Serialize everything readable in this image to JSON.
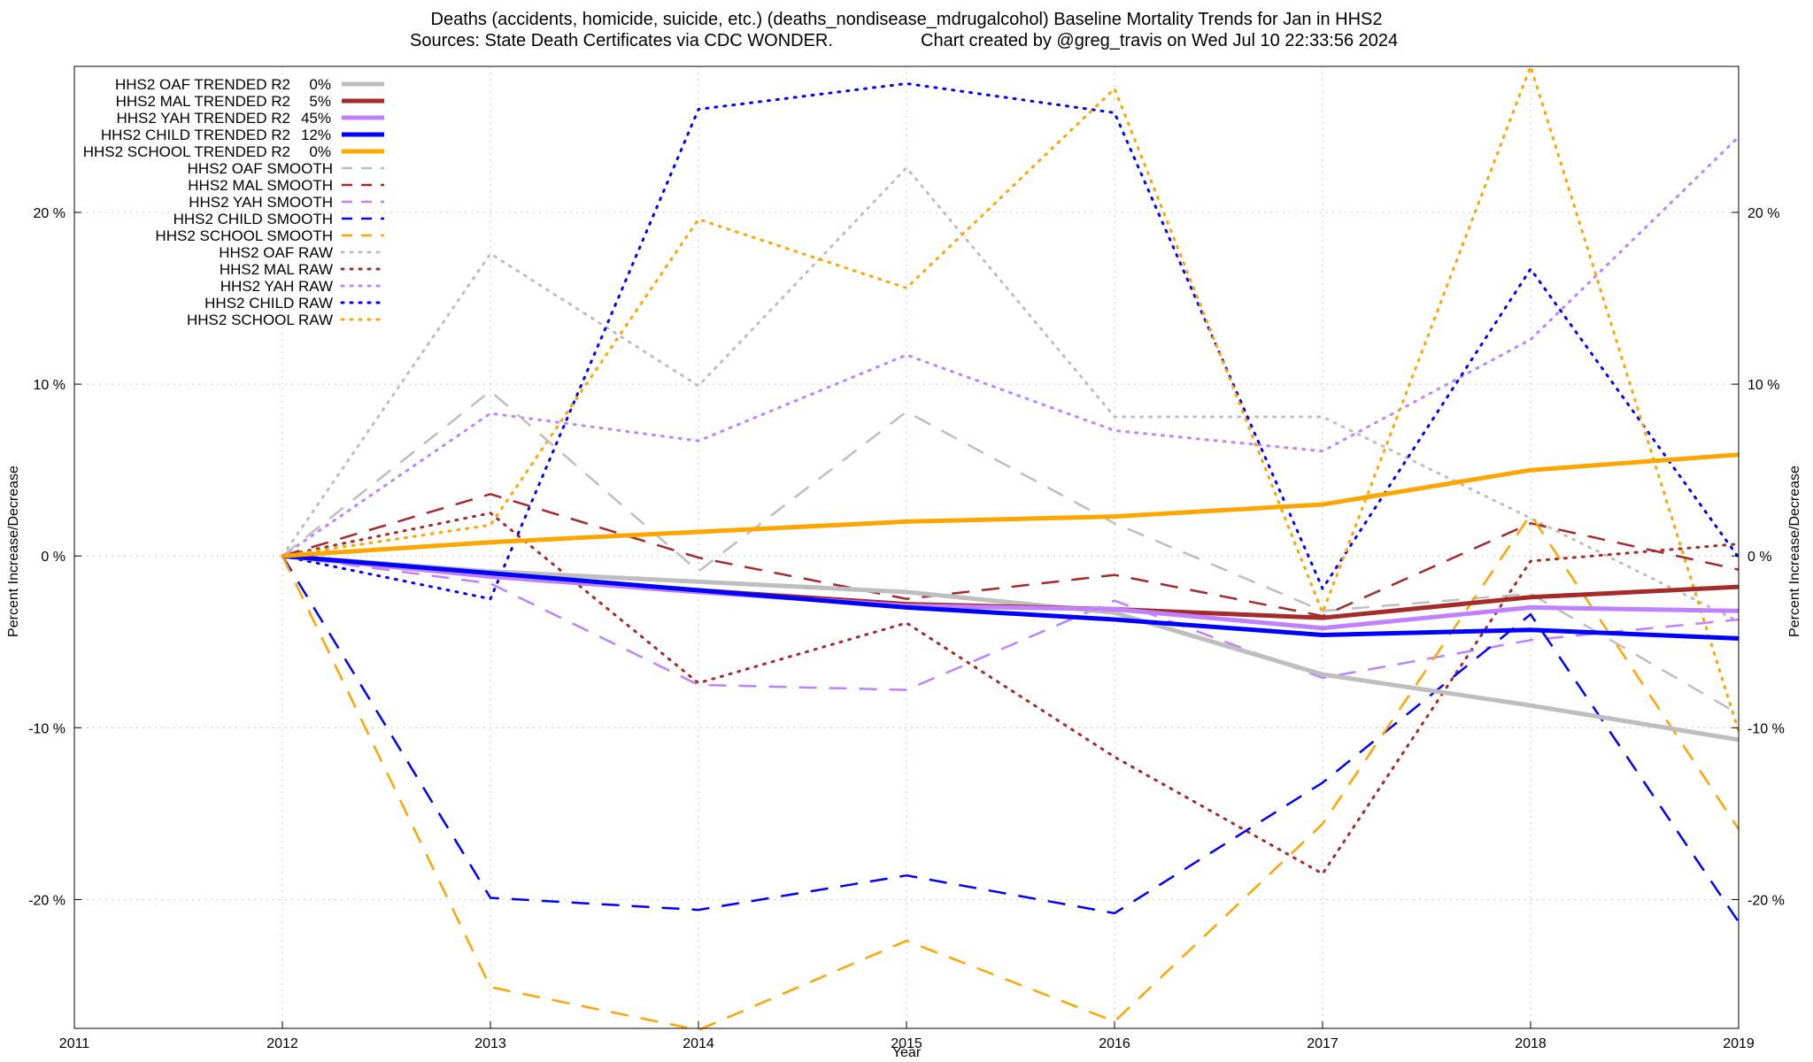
{
  "chart_data": {
    "type": "line",
    "title": "Deaths (accidents, homicide, suicide, etc.) (deaths_nondisease_mdrugalcohol)  Baseline Mortality Trends for Jan in HHS2",
    "subtitle_left": "Sources: State Death Certificates via CDC WONDER.",
    "subtitle_right": "Chart created by @greg_travis on Wed Jul 10 22:33:56 2024",
    "xlabel": "Year",
    "ylabel": "Percent Increase/Decrease",
    "xlim": [
      2011,
      2019
    ],
    "ylim": [
      -27.5,
      28.5
    ],
    "x_ticks": [
      2011,
      2012,
      2013,
      2014,
      2015,
      2016,
      2017,
      2018,
      2019
    ],
    "y_ticks": [
      {
        "value": -20,
        "label": "-20 %"
      },
      {
        "value": -10,
        "label": "-10 %"
      },
      {
        "value": 0,
        "label": "0 %"
      },
      {
        "value": 10,
        "label": "10 %"
      },
      {
        "value": 20,
        "label": "20 %"
      }
    ],
    "grid": true,
    "legend_position": "top-left",
    "x": [
      2012,
      2013,
      2014,
      2015,
      2016,
      2017,
      2018,
      2019
    ],
    "series": [
      {
        "name": "HHS2 OAF TRENDED R2",
        "r2": "0%",
        "style": "trended",
        "color": "#bebebe",
        "values": [
          0,
          -0.9,
          -1.5,
          -2.1,
          -3.3,
          -6.9,
          -8.7,
          -10.7
        ]
      },
      {
        "name": "HHS2 MAL TRENDED R2",
        "r2": "5%",
        "style": "trended",
        "color": "#a52a2a",
        "values": [
          0,
          -1.1,
          -2.0,
          -2.8,
          -3.1,
          -3.6,
          -2.4,
          -1.8
        ]
      },
      {
        "name": "HHS2 YAH TRENDED R2",
        "r2": "45%",
        "style": "trended",
        "color": "#c080ff",
        "values": [
          0,
          -1.2,
          -2.1,
          -2.9,
          -3.1,
          -4.2,
          -3.0,
          -3.2
        ]
      },
      {
        "name": "HHS2 CHILD TRENDED R2",
        "r2": "12%",
        "style": "trended",
        "color": "#0000ff",
        "values": [
          0,
          -1.0,
          -2.0,
          -3.0,
          -3.7,
          -4.6,
          -4.3,
          -4.8
        ]
      },
      {
        "name": "HHS2 SCHOOL TRENDED R2",
        "r2": "0%",
        "style": "trended",
        "color": "#ffa500",
        "values": [
          0,
          0.8,
          1.4,
          2.0,
          2.3,
          3.0,
          5.0,
          5.9
        ]
      },
      {
        "name": "HHS2 OAF SMOOTH",
        "r2": "",
        "style": "smooth",
        "color": "#bebebe",
        "values": [
          0,
          9.6,
          -0.9,
          8.4,
          1.9,
          -3.2,
          -2.2,
          -9.2
        ]
      },
      {
        "name": "HHS2 MAL SMOOTH",
        "r2": "",
        "style": "smooth",
        "color": "#a52a2a",
        "values": [
          0,
          3.6,
          -0.1,
          -2.5,
          -1.1,
          -3.5,
          1.9,
          -0.8
        ]
      },
      {
        "name": "HHS2 YAH SMOOTH",
        "r2": "",
        "style": "smooth",
        "color": "#c080ff",
        "values": [
          0,
          -1.6,
          -7.5,
          -7.8,
          -2.6,
          -7.1,
          -4.9,
          -3.7
        ]
      },
      {
        "name": "HHS2 CHILD SMOOTH",
        "r2": "",
        "style": "smooth",
        "color": "#0000ff",
        "values": [
          0,
          -19.9,
          -20.6,
          -18.6,
          -20.8,
          -13.2,
          -3.4,
          -21.3
        ]
      },
      {
        "name": "HHS2 SCHOOL SMOOTH",
        "r2": "",
        "style": "smooth",
        "color": "#ffa500",
        "values": [
          0,
          -25.1,
          -27.6,
          -22.4,
          -27.1,
          -15.6,
          2.4,
          -15.9
        ]
      },
      {
        "name": "HHS2 OAF RAW",
        "r2": "",
        "style": "raw",
        "color": "#bebebe",
        "values": [
          0,
          17.6,
          9.9,
          22.6,
          8.1,
          8.1,
          2.2,
          -3.8
        ]
      },
      {
        "name": "HHS2 MAL RAW",
        "r2": "",
        "style": "raw",
        "color": "#a52a2a",
        "values": [
          0,
          2.5,
          -7.4,
          -3.9,
          -11.7,
          -18.5,
          -0.3,
          0.7
        ]
      },
      {
        "name": "HHS2 YAH RAW",
        "r2": "",
        "style": "raw",
        "color": "#c080ff",
        "values": [
          0,
          8.3,
          6.7,
          11.7,
          7.3,
          6.1,
          12.6,
          24.4
        ]
      },
      {
        "name": "HHS2 CHILD RAW",
        "r2": "",
        "style": "raw",
        "color": "#0000ff",
        "values": [
          0,
          -2.5,
          26.0,
          27.5,
          25.8,
          -1.9,
          16.7,
          -0.1
        ]
      },
      {
        "name": "HHS2 SCHOOL RAW",
        "r2": "",
        "style": "raw",
        "color": "#ffa500",
        "values": [
          0,
          1.8,
          19.6,
          15.6,
          27.2,
          -3.3,
          28.5,
          -10.2
        ]
      }
    ]
  }
}
